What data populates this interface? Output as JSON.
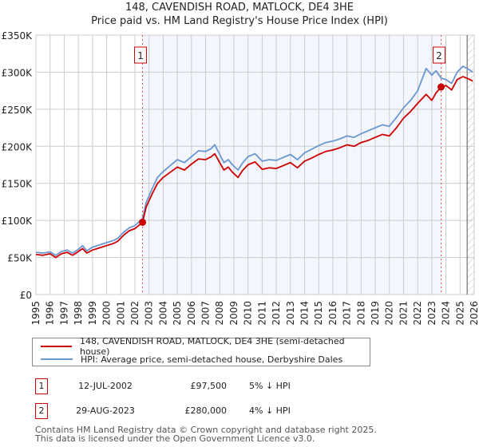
{
  "title_line1": "148, CAVENDISH ROAD, MATLOCK, DE4 3HE",
  "title_line2": "Price paid vs. HM Land Registry's House Price Index (HPI)",
  "chart_data": {
    "type": "line",
    "title": "148, CAVENDISH ROAD, MATLOCK, DE4 3HE — Price paid vs. HM Land Registry's House Price Index (HPI)",
    "xlabel": "",
    "ylabel": "",
    "xlim": [
      1995,
      2026
    ],
    "ylim": [
      0,
      350000
    ],
    "grid": true,
    "x_ticks": [
      "1995",
      "1996",
      "1997",
      "1998",
      "1999",
      "2000",
      "2001",
      "2002",
      "2003",
      "2004",
      "2005",
      "2006",
      "2007",
      "2008",
      "2009",
      "2010",
      "2011",
      "2012",
      "2013",
      "2014",
      "2015",
      "2016",
      "2017",
      "2018",
      "2019",
      "2020",
      "2021",
      "2022",
      "2023",
      "2024",
      "2025",
      "2026"
    ],
    "y_ticks": [
      "£0",
      "£50K",
      "£100K",
      "£150K",
      "£200K",
      "£250K",
      "£300K",
      "£350K"
    ],
    "y_tick_values": [
      0,
      50000,
      100000,
      150000,
      200000,
      250000,
      300000,
      350000
    ],
    "legend_position": "below",
    "series": [
      {
        "name": "148, CAVENDISH ROAD, MATLOCK, DE4 3HE (semi-detached house)",
        "color": "#cc0000",
        "x": [
          1995.0,
          1995.5,
          1996.0,
          1996.4,
          1996.8,
          1997.2,
          1997.6,
          1998.0,
          1998.3,
          1998.6,
          1999.0,
          1999.5,
          2000.0,
          2000.5,
          2000.8,
          2001.2,
          2001.6,
          2002.0,
          2002.54,
          2002.8,
          2003.2,
          2003.6,
          2004.0,
          2004.5,
          2005.0,
          2005.5,
          2006.0,
          2006.5,
          2007.0,
          2007.4,
          2007.65,
          2008.0,
          2008.3,
          2008.6,
          2008.9,
          2009.3,
          2009.6,
          2010.0,
          2010.5,
          2011.0,
          2011.5,
          2012.0,
          2012.5,
          2013.0,
          2013.5,
          2014.0,
          2014.5,
          2015.0,
          2015.5,
          2016.0,
          2016.5,
          2017.0,
          2017.5,
          2018.0,
          2018.5,
          2019.0,
          2019.5,
          2020.0,
          2020.5,
          2021.0,
          2021.5,
          2022.0,
          2022.6,
          2023.0,
          2023.3,
          2023.66,
          2024.0,
          2024.4,
          2024.8,
          2025.2,
          2025.6,
          2025.9
        ],
        "values": [
          54000,
          53000,
          55000,
          50000,
          55000,
          57000,
          53000,
          58000,
          62000,
          56000,
          60000,
          63000,
          66000,
          69000,
          72000,
          80000,
          86000,
          89000,
          97500,
          118000,
          135000,
          150000,
          158000,
          165000,
          172000,
          168000,
          176000,
          183000,
          182000,
          186000,
          190000,
          178000,
          168000,
          172000,
          165000,
          158000,
          167000,
          175000,
          179000,
          169000,
          171000,
          170000,
          174000,
          178000,
          171000,
          180000,
          184000,
          189000,
          193000,
          195000,
          198000,
          202000,
          200000,
          205000,
          208000,
          212000,
          216000,
          214000,
          225000,
          238000,
          247000,
          258000,
          270000,
          262000,
          272000,
          280000,
          282000,
          276000,
          290000,
          294000,
          291000,
          288000
        ]
      },
      {
        "name": "HPI: Average price, semi-detached house, Derbyshire Dales",
        "color": "#6a96d2",
        "x": [
          1995.0,
          1995.5,
          1996.0,
          1996.4,
          1996.8,
          1997.2,
          1997.6,
          1998.0,
          1998.3,
          1998.6,
          1999.0,
          1999.5,
          2000.0,
          2000.5,
          2000.8,
          2001.2,
          2001.6,
          2002.0,
          2002.54,
          2002.8,
          2003.2,
          2003.6,
          2004.0,
          2004.5,
          2005.0,
          2005.5,
          2006.0,
          2006.5,
          2007.0,
          2007.4,
          2007.65,
          2008.0,
          2008.3,
          2008.6,
          2008.9,
          2009.3,
          2009.6,
          2010.0,
          2010.5,
          2011.0,
          2011.5,
          2012.0,
          2012.5,
          2013.0,
          2013.5,
          2014.0,
          2014.5,
          2015.0,
          2015.5,
          2016.0,
          2016.5,
          2017.0,
          2017.5,
          2018.0,
          2018.5,
          2019.0,
          2019.5,
          2020.0,
          2020.5,
          2021.0,
          2021.5,
          2022.0,
          2022.6,
          2023.0,
          2023.3,
          2023.66,
          2024.0,
          2024.4,
          2024.8,
          2025.2,
          2025.6,
          2025.9
        ],
        "values": [
          57000,
          56000,
          57500,
          53000,
          58000,
          60000,
          56000,
          61000,
          66000,
          59000,
          64000,
          67000,
          70000,
          73000,
          76000,
          84000,
          90000,
          93000,
          102500,
          124000,
          142000,
          158000,
          166000,
          174000,
          182000,
          178000,
          186000,
          194000,
          193000,
          197000,
          202000,
          189000,
          178000,
          182000,
          175000,
          168000,
          177000,
          186000,
          190000,
          180000,
          182000,
          181000,
          185000,
          189000,
          182000,
          191000,
          196000,
          201000,
          205000,
          207000,
          210000,
          214000,
          212000,
          217000,
          221000,
          225000,
          229000,
          227000,
          239000,
          252000,
          262000,
          275000,
          305000,
          296000,
          302000,
          292000,
          290000,
          285000,
          300000,
          308000,
          304000,
          300000
        ]
      }
    ],
    "annotations": [
      {
        "label": "1",
        "x": 2002.54,
        "value": 97500,
        "date": "12-JUL-2002",
        "price": "£97,500",
        "hpi_diff": "5% ↓ HPI"
      },
      {
        "label": "2",
        "x": 2023.66,
        "value": 280000,
        "date": "29-AUG-2023",
        "price": "£280,000",
        "hpi_diff": "4% ↓ HPI"
      }
    ],
    "shaded_region": {
      "from": 2002.54,
      "to": 2023.66
    },
    "forecast_hatch_from": 2025.5
  },
  "legend": {
    "items": [
      {
        "label": "148, CAVENDISH ROAD, MATLOCK, DE4 3HE (semi-detached house)",
        "color": "#cc0000"
      },
      {
        "label": "HPI: Average price, semi-detached house, Derbyshire Dales",
        "color": "#6a96d2"
      }
    ]
  },
  "transactions": [
    {
      "num": "1",
      "date": "12-JUL-2002",
      "price": "£97,500",
      "hpi": "5% ↓ HPI"
    },
    {
      "num": "2",
      "date": "29-AUG-2023",
      "price": "£280,000",
      "hpi": "4% ↓ HPI"
    }
  ],
  "footer": {
    "line1": "Contains HM Land Registry data © Crown copyright and database right 2025.",
    "line2": "This data is licensed under the Open Government Licence v3.0."
  }
}
